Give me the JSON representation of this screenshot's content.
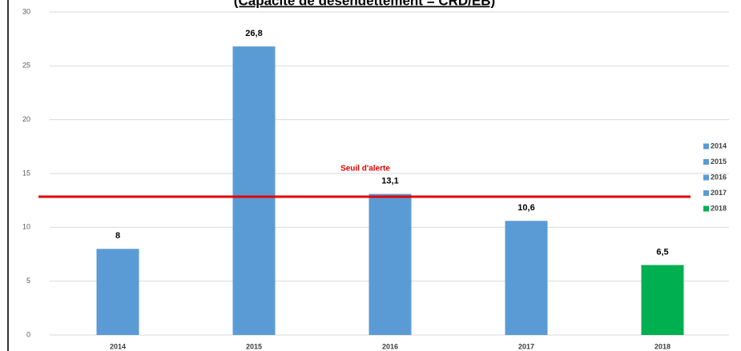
{
  "chart_data": {
    "type": "bar",
    "title": "(Capacité de désendettement = CRD/EB)",
    "categories": [
      "2014",
      "2015",
      "2016",
      "2017",
      "2018"
    ],
    "values": [
      8,
      26.8,
      13.1,
      10.6,
      6.5
    ],
    "value_labels": [
      "8",
      "26,8",
      "13,1",
      "10,6",
      "6,5"
    ],
    "colors": [
      "#5b9bd5",
      "#5b9bd5",
      "#5b9bd5",
      "#5b9bd5",
      "#00b050"
    ],
    "ylim": [
      0,
      30
    ],
    "yticks": [
      0,
      5,
      10,
      15,
      20,
      25,
      30
    ],
    "grid": true,
    "threshold": {
      "label": "Seuil d'alerte",
      "value": 12.85,
      "color": "#e00000"
    },
    "legend": "right"
  }
}
